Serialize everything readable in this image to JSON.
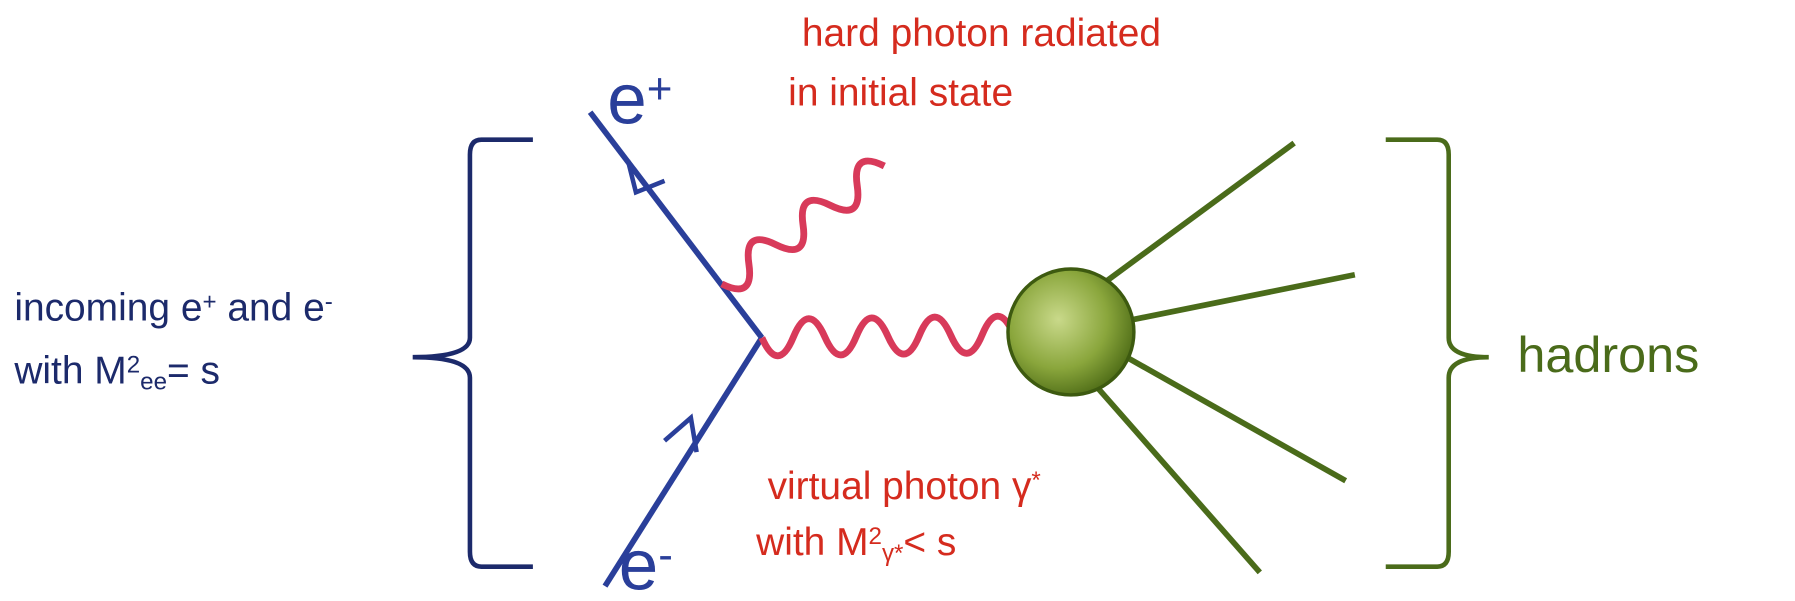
{
  "particles": {
    "positron": [
      "e",
      {
        "sup": "+"
      }
    ],
    "electron": [
      "e",
      {
        "sup": "-"
      }
    ]
  },
  "annotations": {
    "hard_photon": [
      [
        "hard photon radiated"
      ],
      [
        "in initial state"
      ]
    ],
    "virtual_photon": [
      [
        "virtual photon ",
        "γ",
        {
          "sup": "*"
        }
      ],
      [
        "with M",
        {
          "sup": "2"
        },
        {
          "sub": "γ*"
        },
        "< s"
      ]
    ],
    "incoming": [
      [
        "incoming e",
        {
          "sup": "+"
        },
        " and e",
        {
          "sup": "-"
        }
      ],
      [
        "with M",
        {
          "sup": "2"
        },
        {
          "sub": "ee"
        },
        "= s"
      ]
    ],
    "outgoing": [
      [
        "hadrons"
      ]
    ]
  }
}
